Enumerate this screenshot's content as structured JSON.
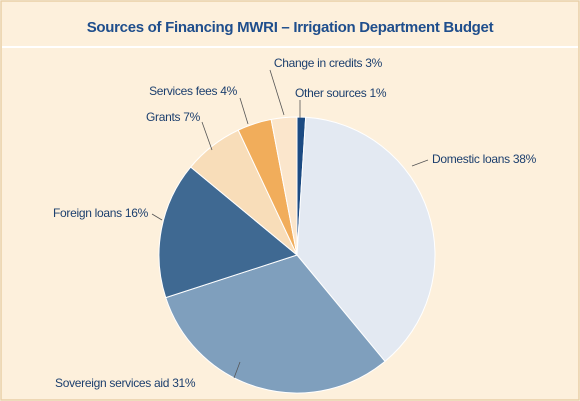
{
  "chart_data": {
    "type": "pie",
    "title": "Sources of Financing MWRI – Irrigation Department Budget",
    "categories": [
      "Other sources",
      "Domestic loans",
      "Sovereign services aid",
      "Foreign loans",
      "Grants",
      "Services fees",
      "Change in credits"
    ],
    "values": [
      1,
      38,
      31,
      16,
      7,
      4,
      3
    ],
    "value_labels": [
      "1%",
      "38%",
      "31%",
      "16%",
      "7%",
      "4%",
      "3%"
    ],
    "colors": [
      "#1b4a82",
      "#e3e9f2",
      "#7f9fbd",
      "#3f6992",
      "#f8ddb9",
      "#f1ad5b",
      "#fbe6cc"
    ]
  }
}
